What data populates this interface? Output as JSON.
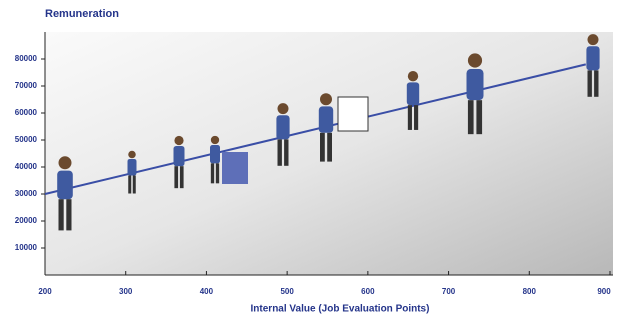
{
  "chart_data": {
    "type": "line",
    "title": "Remuneration",
    "x_label": "Internal Value (Job Evaluation Points)",
    "series": [
      {
        "color": "#3a4ea6",
        "x": [
          200,
          870
        ],
        "values": [
          30000,
          78000
        ]
      }
    ],
    "xlim": [
      200,
      900
    ],
    "xticks": [
      200,
      300,
      400,
      500,
      600,
      700,
      800,
      900
    ],
    "ylim": [
      0,
      90000
    ],
    "yticks": [
      10000,
      20000,
      30000,
      40000,
      50000,
      60000,
      70000,
      80000
    ]
  }
}
